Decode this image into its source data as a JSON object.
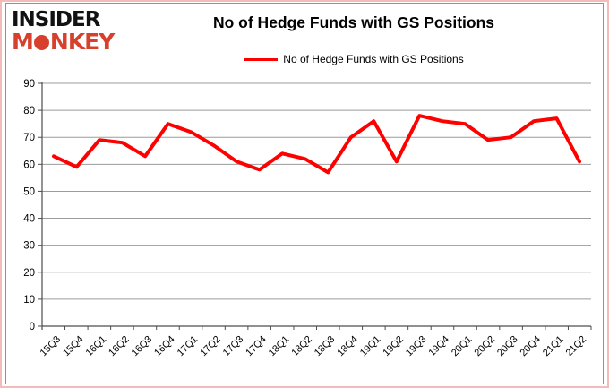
{
  "logo": {
    "line1": "INSIDER",
    "line2_prefix": "M",
    "line2_suffix": "NKEY"
  },
  "header": {
    "title": "No of Hedge Funds with GS Positions"
  },
  "legend": {
    "label": "No of Hedge Funds with GS Positions"
  },
  "colors": {
    "series_line": "#ff0000",
    "gridline": "#9c9c9c",
    "axis": "#4d4d4d",
    "tick_text": "#000000",
    "logo_black": "#121212",
    "logo_red": "#d7402c",
    "frame_pink": "#f3bcba",
    "frame_gray": "#919191"
  },
  "chart_data": {
    "type": "line",
    "title": "No of Hedge Funds with GS Positions",
    "xlabel": "",
    "ylabel": "",
    "ylim": [
      0,
      90
    ],
    "yticks": [
      0,
      10,
      20,
      30,
      40,
      50,
      60,
      70,
      80,
      90
    ],
    "grid": true,
    "legend_position": "top",
    "categories": [
      "15Q3",
      "15Q4",
      "16Q1",
      "16Q2",
      "16Q3",
      "16Q4",
      "17Q1",
      "17Q2",
      "17Q3",
      "17Q4",
      "18Q1",
      "18Q2",
      "18Q3",
      "18Q4",
      "19Q1",
      "19Q2",
      "19Q3",
      "19Q4",
      "20Q1",
      "20Q2",
      "20Q3",
      "20Q4",
      "21Q1",
      "21Q2"
    ],
    "series": [
      {
        "name": "No of Hedge Funds with GS Positions",
        "values": [
          63,
          59,
          69,
          68,
          63,
          75,
          72,
          67,
          61,
          58,
          64,
          62,
          57,
          70,
          76,
          61,
          78,
          76,
          75,
          69,
          70,
          76,
          77,
          61
        ]
      }
    ]
  }
}
